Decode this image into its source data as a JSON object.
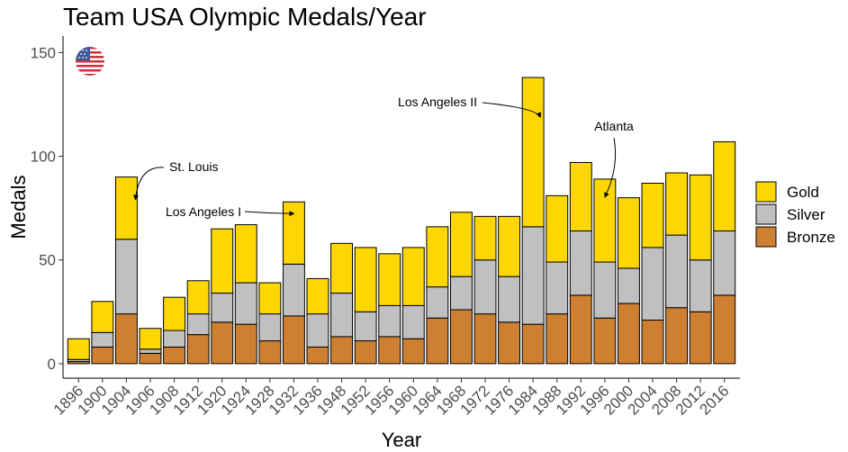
{
  "chart_data": {
    "type": "bar",
    "stacked": true,
    "title": "Team USA Olympic Medals/Year",
    "xlabel": "Year",
    "ylabel": "Medals",
    "ylim": [
      -7,
      158
    ],
    "yticks": [
      0,
      50,
      100,
      150
    ],
    "grid": false,
    "legend_position": "right",
    "categories": [
      "1896",
      "1900",
      "1904",
      "1906",
      "1908",
      "1912",
      "1920",
      "1924",
      "1928",
      "1932",
      "1936",
      "1948",
      "1952",
      "1956",
      "1960",
      "1964",
      "1968",
      "1972",
      "1976",
      "1984",
      "1988",
      "1992",
      "1996",
      "2000",
      "2004",
      "2008",
      "2012",
      "2016"
    ],
    "series": [
      {
        "name": "Bronze",
        "color": "#cd7f32",
        "values": [
          1,
          8,
          24,
          5,
          8,
          14,
          20,
          19,
          11,
          23,
          8,
          13,
          11,
          13,
          12,
          22,
          26,
          24,
          20,
          19,
          24,
          33,
          22,
          29,
          21,
          27,
          25,
          33
        ]
      },
      {
        "name": "Silver",
        "color": "#c0c0c0",
        "values": [
          1,
          7,
          36,
          2,
          8,
          10,
          14,
          20,
          13,
          25,
          16,
          21,
          14,
          15,
          16,
          15,
          16,
          26,
          22,
          47,
          25,
          31,
          27,
          17,
          35,
          35,
          25,
          31
        ]
      },
      {
        "name": "Gold",
        "color": "#ffd700",
        "values": [
          10,
          15,
          30,
          10,
          16,
          16,
          31,
          28,
          15,
          30,
          17,
          24,
          31,
          25,
          28,
          29,
          31,
          21,
          29,
          72,
          32,
          33,
          40,
          34,
          31,
          30,
          41,
          43
        ]
      }
    ],
    "legend": [
      "Gold",
      "Silver",
      "Bronze"
    ],
    "annotations": [
      {
        "label": "St. Louis",
        "category": "1904"
      },
      {
        "label": "Los Angeles I",
        "category": "1932"
      },
      {
        "label": "Los Angeles II",
        "category": "1984"
      },
      {
        "label": "Atlanta",
        "category": "1996"
      }
    ],
    "emblem": "us-flag-icon"
  }
}
